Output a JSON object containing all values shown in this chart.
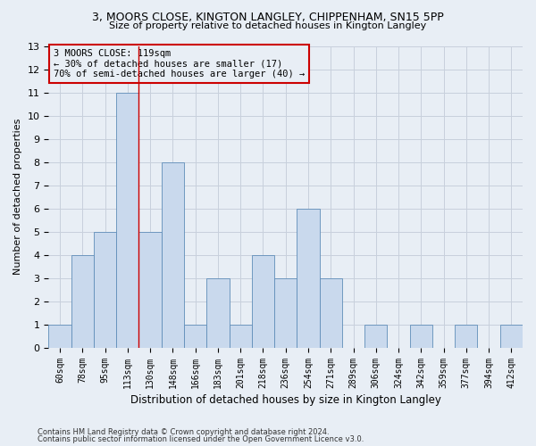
{
  "title_line1": "3, MOORS CLOSE, KINGTON LANGLEY, CHIPPENHAM, SN15 5PP",
  "title_line2": "Size of property relative to detached houses in Kington Langley",
  "xlabel": "Distribution of detached houses by size in Kington Langley",
  "ylabel": "Number of detached properties",
  "footer_line1": "Contains HM Land Registry data © Crown copyright and database right 2024.",
  "footer_line2": "Contains public sector information licensed under the Open Government Licence v3.0.",
  "categories": [
    "60sqm",
    "78sqm",
    "95sqm",
    "113sqm",
    "130sqm",
    "148sqm",
    "166sqm",
    "183sqm",
    "201sqm",
    "218sqm",
    "236sqm",
    "254sqm",
    "271sqm",
    "289sqm",
    "306sqm",
    "324sqm",
    "342sqm",
    "359sqm",
    "377sqm",
    "394sqm",
    "412sqm"
  ],
  "values": [
    1,
    4,
    5,
    11,
    5,
    8,
    1,
    3,
    1,
    4,
    3,
    6,
    3,
    0,
    1,
    0,
    1,
    0,
    1,
    0,
    1
  ],
  "bar_color": "#c9d9ed",
  "bar_edge_color": "#5f8db8",
  "grid_color": "#c8d0dc",
  "background_color": "#e8eef5",
  "vline_x_index": 3.5,
  "vline_color": "#cc0000",
  "annotation_text_line1": "3 MOORS CLOSE: 119sqm",
  "annotation_text_line2": "← 30% of detached houses are smaller (17)",
  "annotation_text_line3": "70% of semi-detached houses are larger (40) →",
  "annotation_box_edgecolor": "#cc0000",
  "ylim": [
    0,
    13
  ],
  "yticks": [
    0,
    1,
    2,
    3,
    4,
    5,
    6,
    7,
    8,
    9,
    10,
    11,
    12,
    13
  ]
}
